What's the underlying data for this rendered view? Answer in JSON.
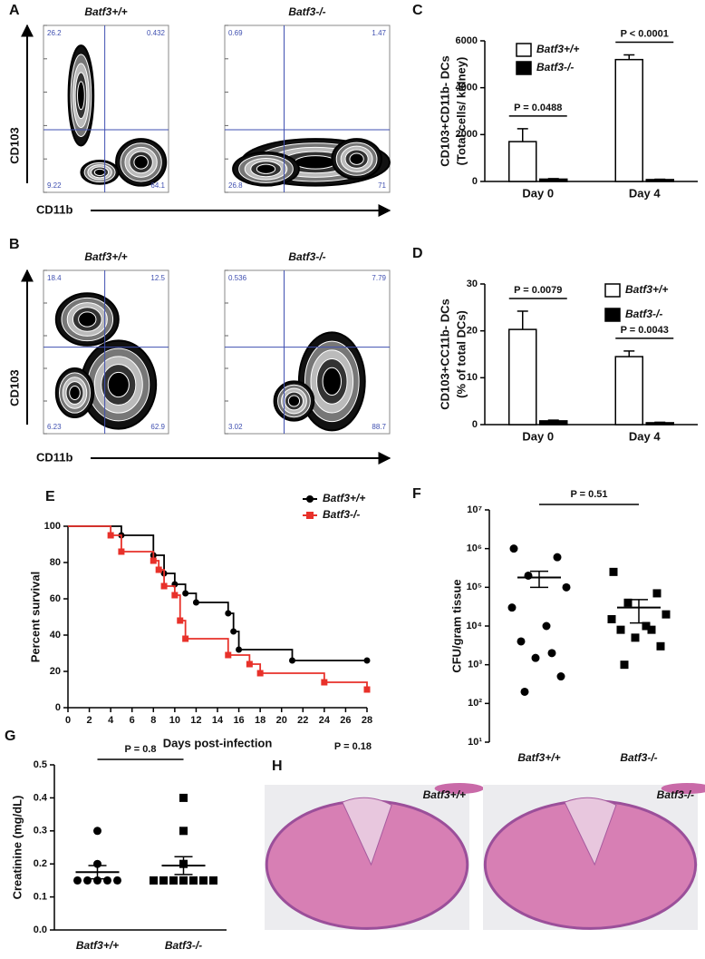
{
  "chart_data": [
    {
      "type": "flow",
      "panel": "A",
      "xlabel": "CD11b",
      "ylabel": "CD103",
      "plots": [
        {
          "title": "Batf3+/+",
          "quadrants": [
            26.2,
            0.432,
            9.22,
            64.1
          ]
        },
        {
          "title": "Batf3-/-",
          "quadrants": [
            0.69,
            1.47,
            26.8,
            71
          ]
        }
      ]
    },
    {
      "type": "flow",
      "panel": "B",
      "xlabel": "CD11b",
      "ylabel": "CD103",
      "plots": [
        {
          "title": "Batf3+/+",
          "quadrants": [
            18.4,
            12.5,
            6.23,
            62.9
          ]
        },
        {
          "title": "Batf3-/-",
          "quadrants": [
            0.536,
            7.79,
            3.02,
            88.7
          ]
        }
      ]
    },
    {
      "type": "bar",
      "panel": "C",
      "ylabel": [
        "CD103+CD11b- DCs",
        "(Total cells/ kidney)"
      ],
      "categories": [
        "Day 0",
        "Day 4"
      ],
      "series": [
        {
          "name": "Batf3+/+",
          "color": "#ffffff",
          "values": [
            1700,
            5200
          ],
          "errors": [
            550,
            200
          ]
        },
        {
          "name": "Batf3-/-",
          "color": "#000000",
          "values": [
            100,
            80
          ],
          "errors": [
            20,
            15
          ]
        }
      ],
      "annotations": [
        "P = 0.0488",
        "P < 0.0001"
      ],
      "ylim": [
        0,
        6000
      ],
      "yticks": [
        0,
        2000,
        4000,
        6000
      ],
      "legend": "upper left"
    },
    {
      "type": "bar",
      "panel": "D",
      "ylabel": [
        "CD103+CC11b- DCs",
        "(% of total DCs)"
      ],
      "categories": [
        "Day 0",
        "Day 4"
      ],
      "series": [
        {
          "name": "Batf3+/+",
          "color": "#ffffff",
          "values": [
            20.3,
            14.5
          ],
          "errors": [
            3.9,
            1.2
          ]
        },
        {
          "name": "Batf3-/-",
          "color": "#000000",
          "values": [
            0.8,
            0.4
          ],
          "errors": [
            0.15,
            0.1
          ]
        }
      ],
      "annotations": [
        "P = 0.0079",
        "P = 0.0043"
      ],
      "ylim": [
        0,
        30
      ],
      "yticks": [
        0,
        10,
        20,
        30
      ],
      "legend": "upper right"
    },
    {
      "type": "survival",
      "panel": "E",
      "xlabel": "Days post-infection",
      "ylabel": "Percent survival",
      "annotation": "P = 0.18",
      "series": [
        {
          "name": "Batf3+/+",
          "color": "#000000",
          "marker": "circle",
          "x": [
            0,
            5,
            8,
            9,
            10,
            11,
            12,
            15,
            15.5,
            16,
            21,
            28
          ],
          "values": [
            100,
            95,
            84,
            74,
            68,
            63,
            58,
            52,
            42,
            32,
            26,
            26
          ]
        },
        {
          "name": "Batf3-/-",
          "color": "#e8312a",
          "marker": "square",
          "x": [
            0,
            4,
            5,
            8,
            8.5,
            9,
            10,
            10.5,
            11,
            15,
            17,
            18,
            24,
            28
          ],
          "values": [
            100,
            95,
            86,
            81,
            76,
            67,
            62,
            48,
            38,
            29,
            24,
            19,
            14,
            10
          ]
        }
      ],
      "xlim": [
        0,
        28
      ],
      "xticks": [
        0,
        2,
        4,
        6,
        8,
        10,
        12,
        14,
        16,
        18,
        20,
        22,
        24,
        26,
        28
      ],
      "ylim": [
        0,
        100
      ],
      "yticks": [
        0,
        20,
        40,
        60,
        80,
        100
      ],
      "legend": "upper right"
    },
    {
      "type": "dot",
      "panel": "F",
      "ylabel": "CFU/gram tissue",
      "annotation": "P = 0.51",
      "log": true,
      "categories": [
        "Batf3+/+",
        "Batf3-/-"
      ],
      "markers": [
        "circle",
        "square"
      ],
      "values": [
        [
          1000000,
          600000,
          200000,
          100000,
          30000,
          10000,
          4000,
          2000,
          1500,
          500,
          200
        ],
        [
          250000,
          70000,
          40000,
          20000,
          15000,
          10000,
          8000,
          8000,
          5000,
          3000,
          1000
        ]
      ],
      "means": [
        180000,
        30000
      ],
      "sems": [
        80000,
        18000
      ],
      "ylim": [
        10,
        10000000
      ],
      "yticks": [
        {
          "value": 10,
          "label": "10¹"
        },
        {
          "value": 100,
          "label": "10²"
        },
        {
          "value": 1000,
          "label": "10³"
        },
        {
          "value": 10000,
          "label": "10⁴"
        },
        {
          "value": 100000,
          "label": "10⁵"
        },
        {
          "value": 1000000,
          "label": "10⁶"
        },
        {
          "value": 10000000,
          "label": "10⁷"
        }
      ]
    },
    {
      "type": "dot",
      "panel": "G",
      "ylabel": "Creatinine (mg/dL)",
      "annotation": "P = 0.8",
      "log": false,
      "categories": [
        "Batf3+/+",
        "Batf3-/-"
      ],
      "markers": [
        "circle",
        "square"
      ],
      "values": [
        [
          0.3,
          0.2,
          0.15,
          0.15,
          0.15,
          0.15,
          0.15
        ],
        [
          0.4,
          0.3,
          0.2,
          0.15,
          0.15,
          0.15,
          0.15,
          0.15,
          0.15,
          0.15
        ]
      ],
      "means": [
        0.175,
        0.195
      ],
      "sems": [
        0.02,
        0.027
      ],
      "ylim": [
        0,
        0.5
      ],
      "yticks": [
        {
          "value": 0,
          "label": "0.0"
        },
        0.1,
        0.2,
        0.3,
        0.4,
        0.5
      ]
    },
    {
      "type": "image",
      "panel": "H",
      "labels": [
        "Batf3+/+",
        "Batf3-/-"
      ]
    }
  ]
}
